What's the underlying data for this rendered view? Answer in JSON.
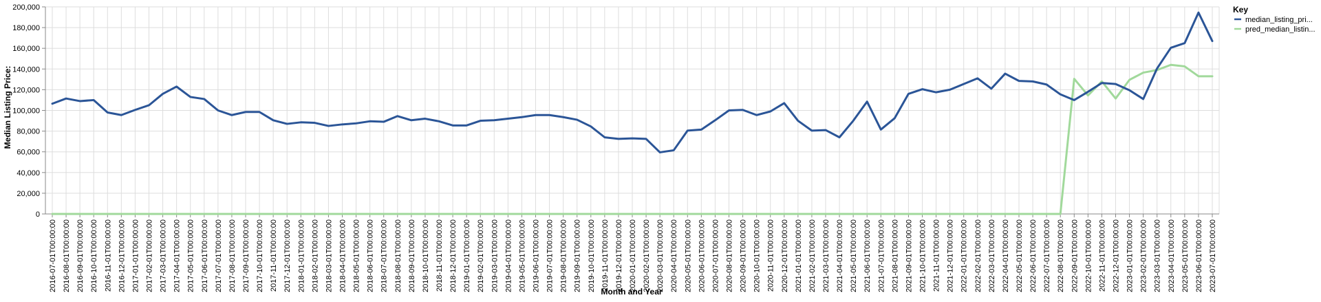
{
  "chart_data": {
    "type": "line",
    "xlabel": "Month and Year",
    "ylabel": "Median Listing Price:",
    "ylim": [
      0,
      200000
    ],
    "y_ticks": [
      0,
      20000,
      40000,
      60000,
      80000,
      100000,
      120000,
      140000,
      160000,
      180000,
      200000
    ],
    "y_tick_labels": [
      "0",
      "20,000",
      "40,000",
      "60,000",
      "80,000",
      "100,000",
      "120,000",
      "140,000",
      "160,000",
      "180,000",
      "200,000"
    ],
    "grid": true,
    "legend": {
      "title": "Key",
      "placement": "top-right"
    },
    "x": [
      "2016-07-01T00:00:00",
      "2016-08-01T00:00:00",
      "2016-09-01T00:00:00",
      "2016-10-01T00:00:00",
      "2016-11-01T00:00:00",
      "2016-12-01T00:00:00",
      "2017-01-01T00:00:00",
      "2017-02-01T00:00:00",
      "2017-03-01T00:00:00",
      "2017-04-01T00:00:00",
      "2017-05-01T00:00:00",
      "2017-06-01T00:00:00",
      "2017-07-01T00:00:00",
      "2017-08-01T00:00:00",
      "2017-09-01T00:00:00",
      "2017-10-01T00:00:00",
      "2017-11-01T00:00:00",
      "2017-12-01T00:00:00",
      "2018-01-01T00:00:00",
      "2018-02-01T00:00:00",
      "2018-03-01T00:00:00",
      "2018-04-01T00:00:00",
      "2018-05-01T00:00:00",
      "2018-06-01T00:00:00",
      "2018-07-01T00:00:00",
      "2018-08-01T00:00:00",
      "2018-09-01T00:00:00",
      "2018-10-01T00:00:00",
      "2018-11-01T00:00:00",
      "2018-12-01T00:00:00",
      "2019-01-01T00:00:00",
      "2019-02-01T00:00:00",
      "2019-03-01T00:00:00",
      "2019-04-01T00:00:00",
      "2019-05-01T00:00:00",
      "2019-06-01T00:00:00",
      "2019-07-01T00:00:00",
      "2019-08-01T00:00:00",
      "2019-09-01T00:00:00",
      "2019-10-01T00:00:00",
      "2019-11-01T00:00:00",
      "2019-12-01T00:00:00",
      "2020-01-01T00:00:00",
      "2020-02-01T00:00:00",
      "2020-03-01T00:00:00",
      "2020-04-01T00:00:00",
      "2020-05-01T00:00:00",
      "2020-06-01T00:00:00",
      "2020-07-01T00:00:00",
      "2020-08-01T00:00:00",
      "2020-09-01T00:00:00",
      "2020-10-01T00:00:00",
      "2020-11-01T00:00:00",
      "2020-12-01T00:00:00",
      "2021-01-01T00:00:00",
      "2021-02-01T00:00:00",
      "2021-03-01T00:00:00",
      "2021-04-01T00:00:00",
      "2021-05-01T00:00:00",
      "2021-06-01T00:00:00",
      "2021-07-01T00:00:00",
      "2021-08-01T00:00:00",
      "2021-09-01T00:00:00",
      "2021-10-01T00:00:00",
      "2021-11-01T00:00:00",
      "2021-12-01T00:00:00",
      "2022-01-01T00:00:00",
      "2022-02-01T00:00:00",
      "2022-03-01T00:00:00",
      "2022-04-01T00:00:00",
      "2022-05-01T00:00:00",
      "2022-06-01T00:00:00",
      "2022-07-01T00:00:00",
      "2022-08-01T00:00:00",
      "2022-09-01T00:00:00",
      "2022-10-01T00:00:00",
      "2022-11-01T00:00:00",
      "2022-12-01T00:00:00",
      "2023-01-01T00:00:00",
      "2023-02-01T00:00:00",
      "2023-03-01T00:00:00",
      "2023-04-01T00:00:00",
      "2023-05-01T00:00:00",
      "2023-06-01T00:00:00",
      "2023-07-01T00:00:00"
    ],
    "series": [
      {
        "name": "median_listing_pri...",
        "color": "#2b5597",
        "values": [
          106500,
          111500,
          109000,
          110000,
          98000,
          95500,
          100500,
          105000,
          116000,
          123000,
          113000,
          111000,
          100000,
          95500,
          98500,
          98500,
          90500,
          87000,
          88500,
          88000,
          85000,
          86500,
          87500,
          89500,
          89000,
          94500,
          90500,
          92000,
          89500,
          85500,
          85500,
          90000,
          90500,
          92000,
          93500,
          95500,
          95500,
          93500,
          91000,
          84500,
          74000,
          72500,
          73000,
          72500,
          59500,
          61500,
          80500,
          81500,
          90500,
          100000,
          100500,
          95500,
          99000,
          107000,
          90000,
          80500,
          81000,
          74000,
          90000,
          108500,
          81500,
          92500,
          116000,
          120500,
          117500,
          120000,
          125500,
          131000,
          121000,
          135500,
          128500,
          128000,
          125000,
          115500,
          110000,
          118000,
          126500,
          125500,
          119500,
          111000,
          140500,
          160500,
          165000,
          194500,
          167000
        ]
      },
      {
        "name": "pred_median_listin...",
        "color": "#a1d99b",
        "values": [
          0,
          0,
          0,
          0,
          0,
          0,
          0,
          0,
          0,
          0,
          0,
          0,
          0,
          0,
          0,
          0,
          0,
          0,
          0,
          0,
          0,
          0,
          0,
          0,
          0,
          0,
          0,
          0,
          0,
          0,
          0,
          0,
          0,
          0,
          0,
          0,
          0,
          0,
          0,
          0,
          0,
          0,
          0,
          0,
          0,
          0,
          0,
          0,
          0,
          0,
          0,
          0,
          0,
          0,
          0,
          0,
          0,
          0,
          0,
          0,
          0,
          0,
          0,
          0,
          0,
          0,
          0,
          0,
          0,
          0,
          0,
          0,
          0,
          0,
          130500,
          114500,
          128000,
          111500,
          129500,
          136500,
          139000,
          144000,
          142500,
          133000,
          133000
        ]
      }
    ]
  }
}
